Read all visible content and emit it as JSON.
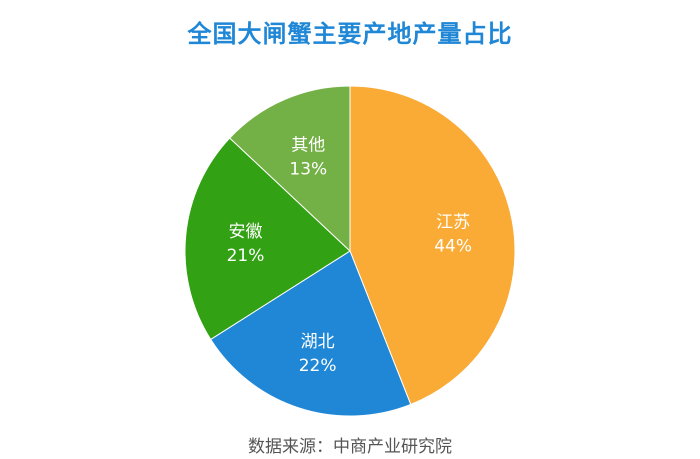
{
  "chart_data": {
    "type": "pie",
    "title": "全国大闸蟹主要产地产量占比",
    "slices": [
      {
        "label": "江苏",
        "value": 44,
        "value_label": "44%",
        "color": "#f9ab35"
      },
      {
        "label": "湖北",
        "value": 22,
        "value_label": "22%",
        "color": "#1f87d6"
      },
      {
        "label": "安徽",
        "value": 21,
        "value_label": "21%",
        "color": "#33a114"
      },
      {
        "label": "其他",
        "value": 13,
        "value_label": "13%",
        "color": "#73b045"
      }
    ],
    "start": "12 o'clock",
    "direction": "clockwise",
    "legend": "none",
    "source": "数据来源：中商产业研究院"
  }
}
